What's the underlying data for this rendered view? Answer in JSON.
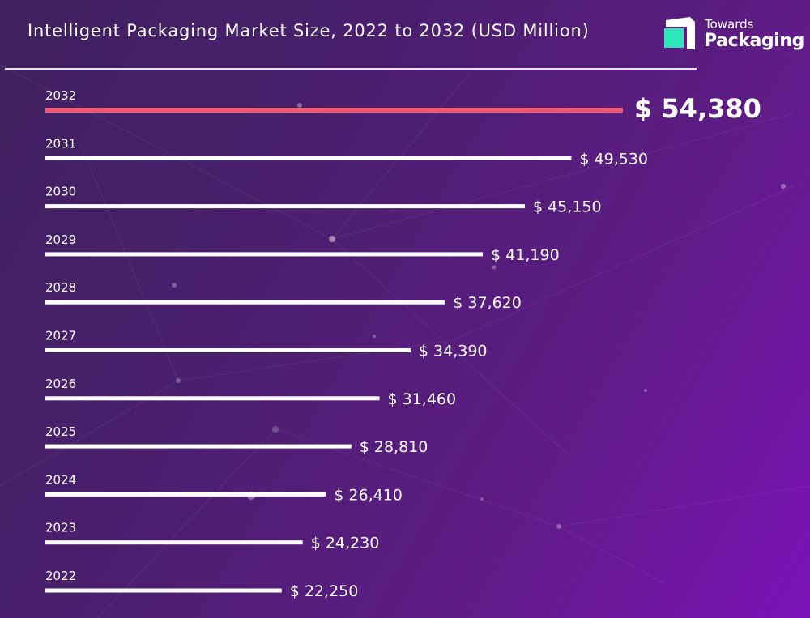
{
  "title": "Intelligent Packaging Market Size, 2022 to 2032 (USD Million)",
  "brand": {
    "line1": "Towards",
    "line2": "Packaging",
    "logo_colors": [
      "#ffffff",
      "#2ee6b8"
    ]
  },
  "colors": {
    "background_start": "#3f215f",
    "background_end": "#7c12b8",
    "bar": "#ffffff",
    "highlight_bar": "#f0566c"
  },
  "chart_data": {
    "type": "bar",
    "orientation": "horizontal",
    "categories": [
      "2032",
      "2031",
      "2030",
      "2029",
      "2028",
      "2027",
      "2026",
      "2025",
      "2024",
      "2023",
      "2022"
    ],
    "values": [
      54380,
      49530,
      45150,
      41190,
      37620,
      34390,
      31460,
      28810,
      26410,
      24230,
      22250
    ],
    "value_labels": [
      "$ 54,380",
      "$ 49,530",
      "$ 45,150",
      "$ 41,190",
      "$ 37,620",
      "$ 34,390",
      "$ 31,460",
      "$ 28,810",
      "$ 26,410",
      "$ 24,230",
      "$ 22,250"
    ],
    "highlight_category": "2032",
    "title": "Intelligent Packaging Market Size, 2022 to 2032 (USD Million)",
    "xlabel": "",
    "ylabel": "",
    "legend": "none",
    "grid": false
  }
}
